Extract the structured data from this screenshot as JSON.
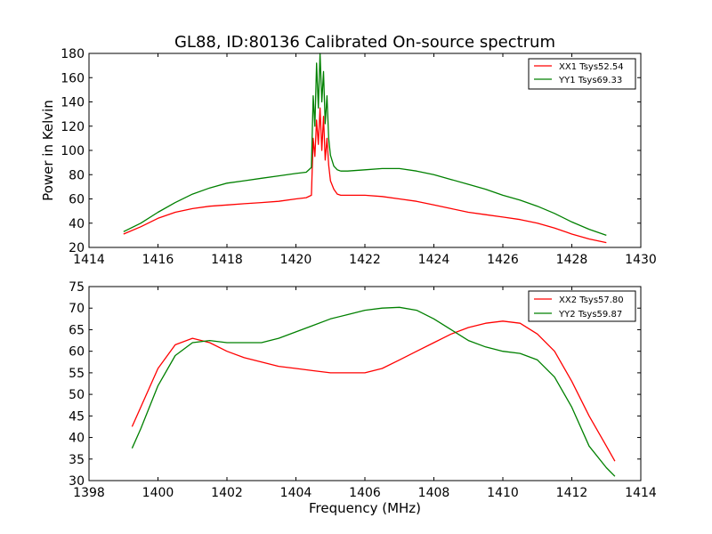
{
  "figure": {
    "title": "GL88, ID:80136 Calibrated On-source spectrum",
    "ylabel": "Power in Kelvin",
    "xlabel": "Frequency (MHz)"
  },
  "chart_data": [
    {
      "type": "line",
      "xlim": [
        1414,
        1430
      ],
      "ylim": [
        20,
        180
      ],
      "xticks": [
        1414,
        1416,
        1418,
        1420,
        1422,
        1424,
        1426,
        1428,
        1430
      ],
      "yticks": [
        20,
        40,
        60,
        80,
        100,
        120,
        140,
        160,
        180
      ],
      "legend_placement": "top-right",
      "series": [
        {
          "name": "XX1 Tsys52.54",
          "color": "#ff0000",
          "x": [
            1415.0,
            1415.5,
            1416.0,
            1416.5,
            1417.0,
            1417.5,
            1418.0,
            1418.5,
            1419.0,
            1419.5,
            1420.0,
            1420.3,
            1420.45,
            1420.5,
            1420.55,
            1420.6,
            1420.65,
            1420.7,
            1420.75,
            1420.8,
            1420.85,
            1420.9,
            1420.95,
            1421.0,
            1421.1,
            1421.2,
            1421.3,
            1421.5,
            1422.0,
            1422.5,
            1423.0,
            1423.5,
            1424.0,
            1424.5,
            1425.0,
            1425.5,
            1426.0,
            1426.5,
            1427.0,
            1427.5,
            1428.0,
            1428.5,
            1429.0
          ],
          "y": [
            31,
            37,
            44,
            49,
            52,
            54,
            55,
            56,
            57,
            58,
            60,
            61,
            63,
            110,
            95,
            125,
            105,
            135,
            100,
            128,
            92,
            110,
            88,
            75,
            68,
            64,
            63,
            63,
            63,
            62,
            60,
            58,
            55,
            52,
            49,
            47,
            45,
            43,
            40,
            36,
            31,
            27,
            24
          ]
        },
        {
          "name": "YY1 Tsys69.33",
          "color": "#008000",
          "x": [
            1415.0,
            1415.5,
            1416.0,
            1416.5,
            1417.0,
            1417.5,
            1418.0,
            1418.5,
            1419.0,
            1419.5,
            1420.0,
            1420.3,
            1420.45,
            1420.5,
            1420.55,
            1420.6,
            1420.65,
            1420.7,
            1420.75,
            1420.8,
            1420.85,
            1420.9,
            1420.95,
            1421.0,
            1421.1,
            1421.2,
            1421.3,
            1421.5,
            1422.0,
            1422.5,
            1423.0,
            1423.5,
            1424.0,
            1424.5,
            1425.0,
            1425.5,
            1426.0,
            1426.5,
            1427.0,
            1427.5,
            1428.0,
            1428.5,
            1429.0
          ],
          "y": [
            33,
            40,
            49,
            57,
            64,
            69,
            73,
            75,
            77,
            79,
            81,
            82,
            86,
            145,
            120,
            172,
            135,
            180,
            140,
            165,
            122,
            145,
            110,
            96,
            87,
            84,
            83,
            83,
            84,
            85,
            85,
            83,
            80,
            76,
            72,
            68,
            63,
            59,
            54,
            48,
            41,
            35,
            30
          ]
        }
      ]
    },
    {
      "type": "line",
      "xlim": [
        1398,
        1414
      ],
      "ylim": [
        30,
        75
      ],
      "xticks": [
        1398,
        1400,
        1402,
        1404,
        1406,
        1408,
        1410,
        1412,
        1414
      ],
      "yticks": [
        30,
        35,
        40,
        45,
        50,
        55,
        60,
        65,
        70,
        75
      ],
      "legend_placement": "top-right",
      "series": [
        {
          "name": "XX2 Tsys57.80",
          "color": "#ff0000",
          "x": [
            1399.25,
            1399.5,
            1400.0,
            1400.5,
            1401.0,
            1401.5,
            1402.0,
            1402.5,
            1403.0,
            1403.5,
            1404.0,
            1404.5,
            1405.0,
            1405.5,
            1406.0,
            1406.5,
            1407.0,
            1407.5,
            1408.0,
            1408.5,
            1409.0,
            1409.5,
            1410.0,
            1410.5,
            1411.0,
            1411.5,
            1412.0,
            1412.5,
            1413.0,
            1413.25
          ],
          "y": [
            42.5,
            47,
            56,
            61.5,
            63,
            62,
            60,
            58.5,
            57.5,
            56.5,
            56,
            55.5,
            55,
            55,
            55,
            56,
            58,
            60,
            62,
            64,
            65.5,
            66.5,
            67,
            66.5,
            64,
            60,
            53,
            45,
            38,
            34.5
          ]
        },
        {
          "name": "YY2 Tsys59.87",
          "color": "#008000",
          "x": [
            1399.25,
            1399.5,
            1400.0,
            1400.5,
            1401.0,
            1401.5,
            1402.0,
            1402.5,
            1403.0,
            1403.5,
            1404.0,
            1404.5,
            1405.0,
            1405.5,
            1406.0,
            1406.5,
            1407.0,
            1407.5,
            1408.0,
            1408.5,
            1409.0,
            1409.5,
            1410.0,
            1410.5,
            1411.0,
            1411.5,
            1412.0,
            1412.5,
            1413.0,
            1413.25
          ],
          "y": [
            37.5,
            42,
            52,
            59,
            62,
            62.5,
            62,
            62,
            62,
            63,
            64.5,
            66,
            67.5,
            68.5,
            69.5,
            70,
            70.2,
            69.5,
            67.5,
            65,
            62.5,
            61,
            60,
            59.5,
            58,
            54,
            47,
            38,
            33,
            31
          ]
        }
      ]
    }
  ]
}
